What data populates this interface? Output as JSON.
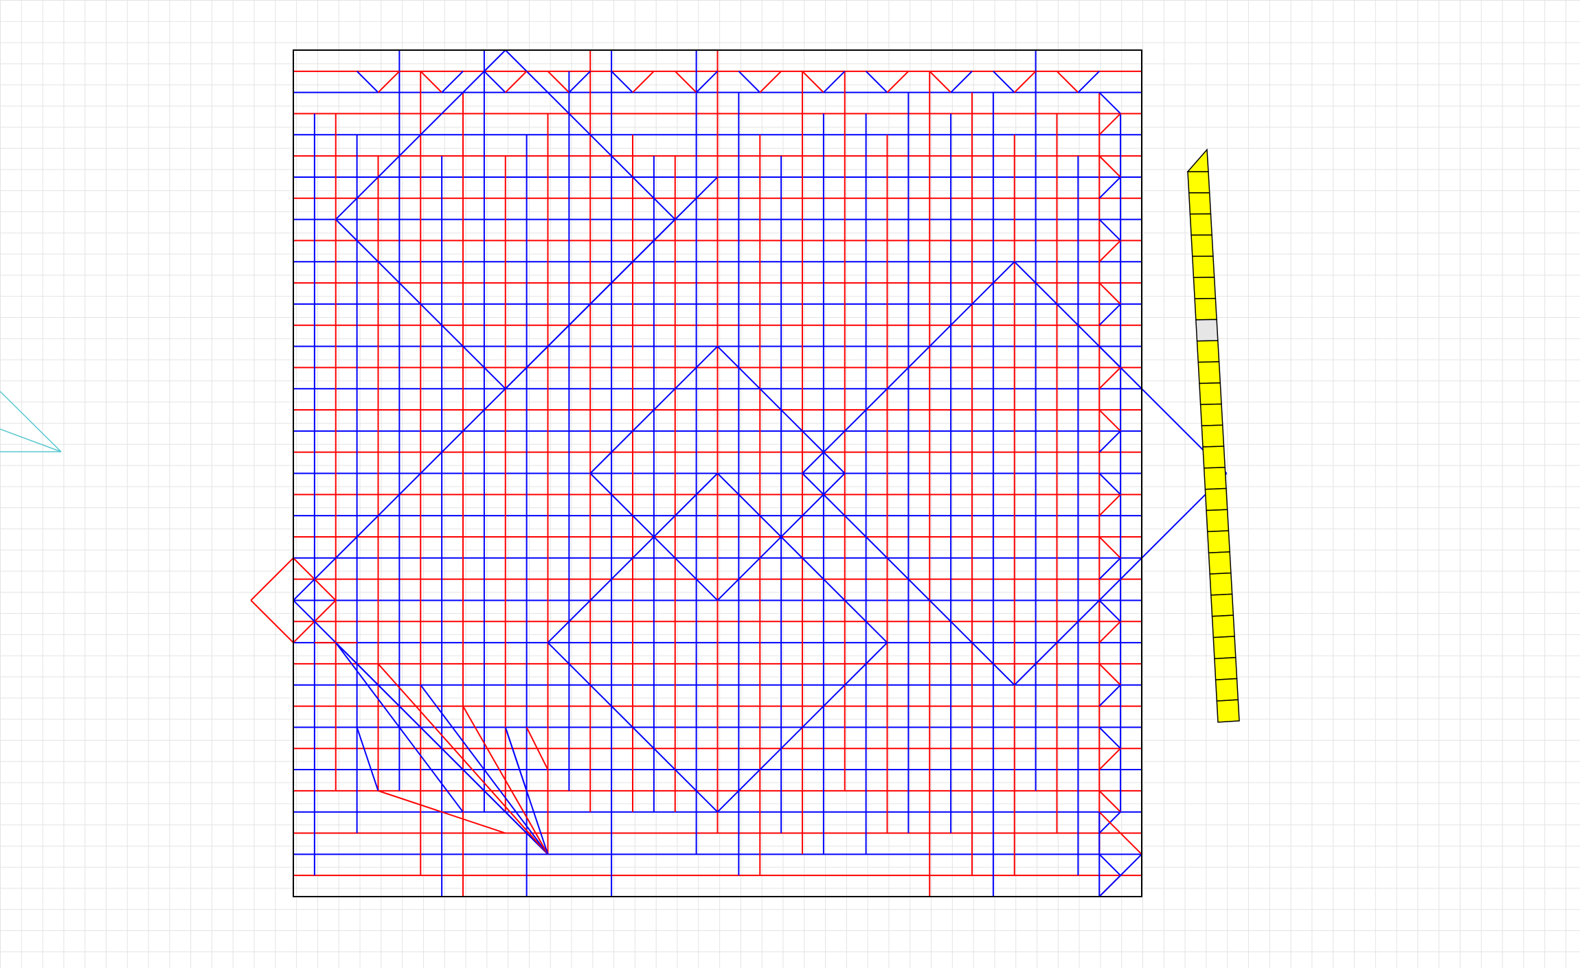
{
  "app": {
    "view": "crease-pattern-editor"
  },
  "colors": {
    "mountain": "#ff0000",
    "valley": "#0000ff",
    "border": "#000000",
    "grid": "#e3e3e3",
    "aux": "#58c7d0",
    "strip_fill": "#ffff00",
    "strip_gap_fill": "#e6e6e6"
  },
  "crease_pattern": {
    "shape": "square",
    "line_types": [
      "mountain",
      "valley"
    ],
    "horizontal_creases_approx": 40,
    "vertical_creases_approx": 40
  },
  "flat_fold_preview": {
    "cells": 26,
    "gap_after_cell": 7,
    "cell_fill": "yellow",
    "gap_fill": "light-gray"
  },
  "aux_lines": {
    "count": 2,
    "color_name": "cyan"
  }
}
